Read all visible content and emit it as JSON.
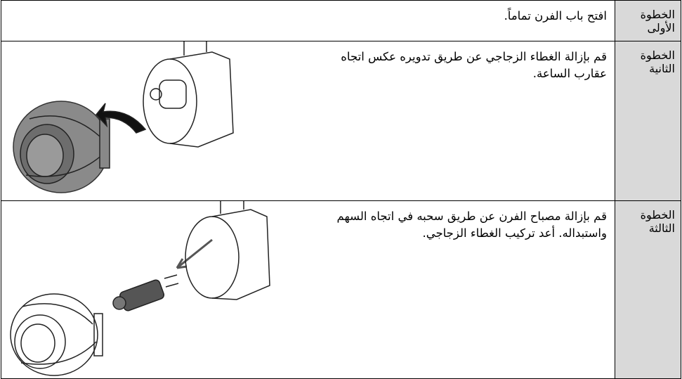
{
  "table": {
    "rows": [
      {
        "step": "الخطوة الأولى",
        "instruction": "افتح باب الفرن تماماً."
      },
      {
        "step": "الخطوة الثانية",
        "instruction": "قم بإزالة الغطاء الزجاجي عن طريق تدويره عكس اتجاه عقارب الساعة."
      },
      {
        "step": "الخطوة الثالثة",
        "instruction": "قم بإزالة مصباح الفرن عن طريق سحبه في اتجاه السهم واستبداله. أعد تركيب الغطاء الزجاجي."
      }
    ]
  }
}
